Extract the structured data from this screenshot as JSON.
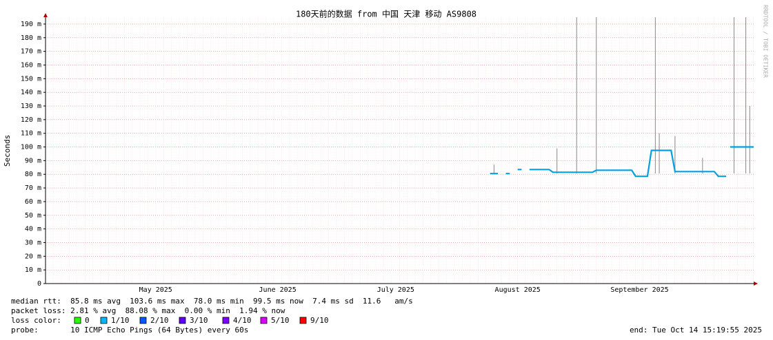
{
  "chart_data": {
    "type": "line",
    "title": "180天前的数据 from 中国 天津 移动 AS9808",
    "y_label": "Seconds",
    "side_text": "RRDTOOL / TOBI OETIKER",
    "xlim": [
      "2025-04-17",
      "2025-10-14"
    ],
    "xticks": [
      {
        "value": "2025-05-15",
        "label": "May 2025"
      },
      {
        "value": "2025-06-15",
        "label": "June 2025"
      },
      {
        "value": "2025-07-15",
        "label": "July 2025"
      },
      {
        "value": "2025-08-15",
        "label": "August 2025"
      },
      {
        "value": "2025-09-15",
        "label": "September 2025"
      }
    ],
    "ylim": [
      0,
      0.195
    ],
    "yticks": [
      0,
      {
        "value": 0.01,
        "label": "10 m"
      },
      {
        "value": 0.02,
        "label": "20 m"
      },
      {
        "value": 0.03,
        "label": "30 m"
      },
      {
        "value": 0.04,
        "label": "40 m"
      },
      {
        "value": 0.05,
        "label": "50 m"
      },
      {
        "value": 0.06,
        "label": "60 m"
      },
      {
        "value": 0.07,
        "label": "70 m"
      },
      {
        "value": 0.08,
        "label": "80 m"
      },
      {
        "value": 0.09,
        "label": "90 m"
      },
      {
        "value": 0.1,
        "label": "100 m"
      },
      {
        "value": 0.11,
        "label": "110 m"
      },
      {
        "value": 0.12,
        "label": "120 m"
      },
      {
        "value": 0.13,
        "label": "130 m"
      },
      {
        "value": 0.14,
        "label": "140 m"
      },
      {
        "value": 0.15,
        "label": "150 m"
      },
      {
        "value": 0.16,
        "label": "160 m"
      },
      {
        "value": 0.17,
        "label": "170 m"
      },
      {
        "value": 0.18,
        "label": "180 m"
      },
      {
        "value": 0.19,
        "label": "190 m"
      }
    ],
    "grid": true,
    "series": [
      {
        "color": "#00a0e0",
        "x": [
          "2025-08-08",
          "2025-08-10",
          "2025-08-11",
          "2025-08-12",
          "2025-08-13",
          "2025-08-14",
          "2025-08-15",
          "2025-08-16",
          "2025-08-17",
          "2025-08-18",
          "2025-08-23",
          "2025-08-24",
          "2025-09-03",
          "2025-09-04",
          "2025-09-13",
          "2025-09-14",
          "2025-09-17",
          "2025-09-18",
          "2025-09-23",
          "2025-09-24",
          "2025-10-04",
          "2025-10-05",
          "2025-10-07",
          "2025-10-07T12",
          "2025-10-08",
          "2025-10-14"
        ],
        "values": [
          0.0805,
          0.0805,
          null,
          0.0805,
          0.0805,
          null,
          0.0835,
          0.0835,
          null,
          0.0835,
          0.0835,
          0.0815,
          0.0815,
          0.083,
          0.083,
          0.0785,
          0.0785,
          0.0975,
          0.0975,
          0.082,
          0.082,
          0.0785,
          0.0785,
          null,
          0.1,
          0.1
        ]
      },
      {
        "color": "#888888",
        "x": [
          "2025-08-09",
          "2025-08-25",
          "2025-08-30",
          "2025-09-04",
          "2025-09-19",
          "2025-09-20",
          "2025-09-24",
          "2025-10-01",
          "2025-10-09",
          "2025-10-12",
          "2025-10-13"
        ],
        "values": [
          0.087,
          0.099,
          0.195,
          0.195,
          0.195,
          0.11,
          0.108,
          0.092,
          0.195,
          0.195,
          0.13
        ]
      }
    ],
    "footer": {
      "median_rtt": "median rtt:  85.8 ms avg  103.6 ms max  78.0 ms min  99.5 ms now  7.4 ms sd  11.6   am/s",
      "packet_loss": "packet loss: 2.81 % avg  88.08 % max  0.00 % min  1.94 % now",
      "loss_color_label": "loss color:",
      "loss_colors": [
        {
          "label": "0",
          "color": "#26ff00"
        },
        {
          "label": "1/10",
          "color": "#00b8ff"
        },
        {
          "label": "2/10",
          "color": "#0059ff"
        },
        {
          "label": "3/10",
          "color": "#5e00ff"
        },
        {
          "label": "4/10",
          "color": "#7e00ff"
        },
        {
          "label": "5/10",
          "color": "#dd00ff"
        },
        {
          "label": "9/10",
          "color": "#ff0000"
        }
      ],
      "probe": "probe:       10 ICMP Echo Pings (64 Bytes) every 60s",
      "end": "end: Tue Oct 14 15:19:55 2025"
    }
  }
}
